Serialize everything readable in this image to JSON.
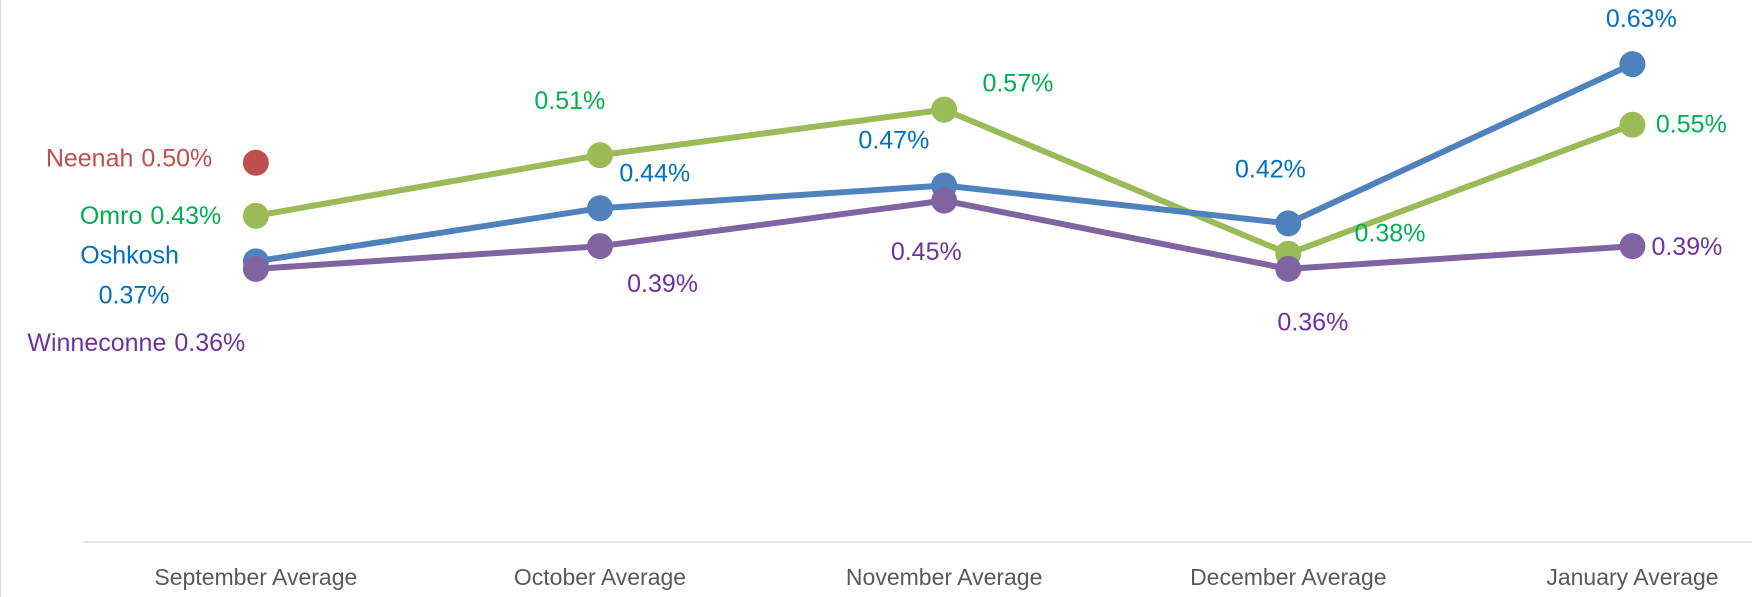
{
  "chart_data": {
    "type": "line",
    "categories": [
      "September Average",
      "October Average",
      "November Average",
      "December Average",
      "January Average"
    ],
    "ylim": [
      0,
      0.7
    ],
    "series": [
      {
        "name": "Neenah",
        "color": "#c0504d",
        "label_color": "#c0504d",
        "values": [
          0.5,
          null,
          null,
          null,
          null
        ],
        "value_labels": [
          "0.50%",
          null,
          null,
          null,
          null
        ]
      },
      {
        "name": "Omro",
        "color": "#9bbb59",
        "label_color": "#00b050",
        "values": [
          0.43,
          0.51,
          0.57,
          0.38,
          0.55
        ],
        "value_labels": [
          "0.43%",
          "0.51%",
          "0.57%",
          "0.38%",
          "0.55%"
        ]
      },
      {
        "name": "Oshkosh",
        "color": "#4f81bd",
        "label_color": "#0070c0",
        "values": [
          0.37,
          0.44,
          0.47,
          0.42,
          0.63
        ],
        "value_labels": [
          "0.37%",
          "0.44%",
          "0.47%",
          "0.42%",
          "0.63%"
        ]
      },
      {
        "name": "Winneconne",
        "color": "#8064a2",
        "label_color": "#7030a0",
        "values": [
          0.36,
          0.39,
          0.45,
          0.36,
          0.39
        ],
        "value_labels": [
          "0.36%",
          "0.39%",
          "0.45%",
          "0.36%",
          "0.39%"
        ]
      }
    ]
  }
}
